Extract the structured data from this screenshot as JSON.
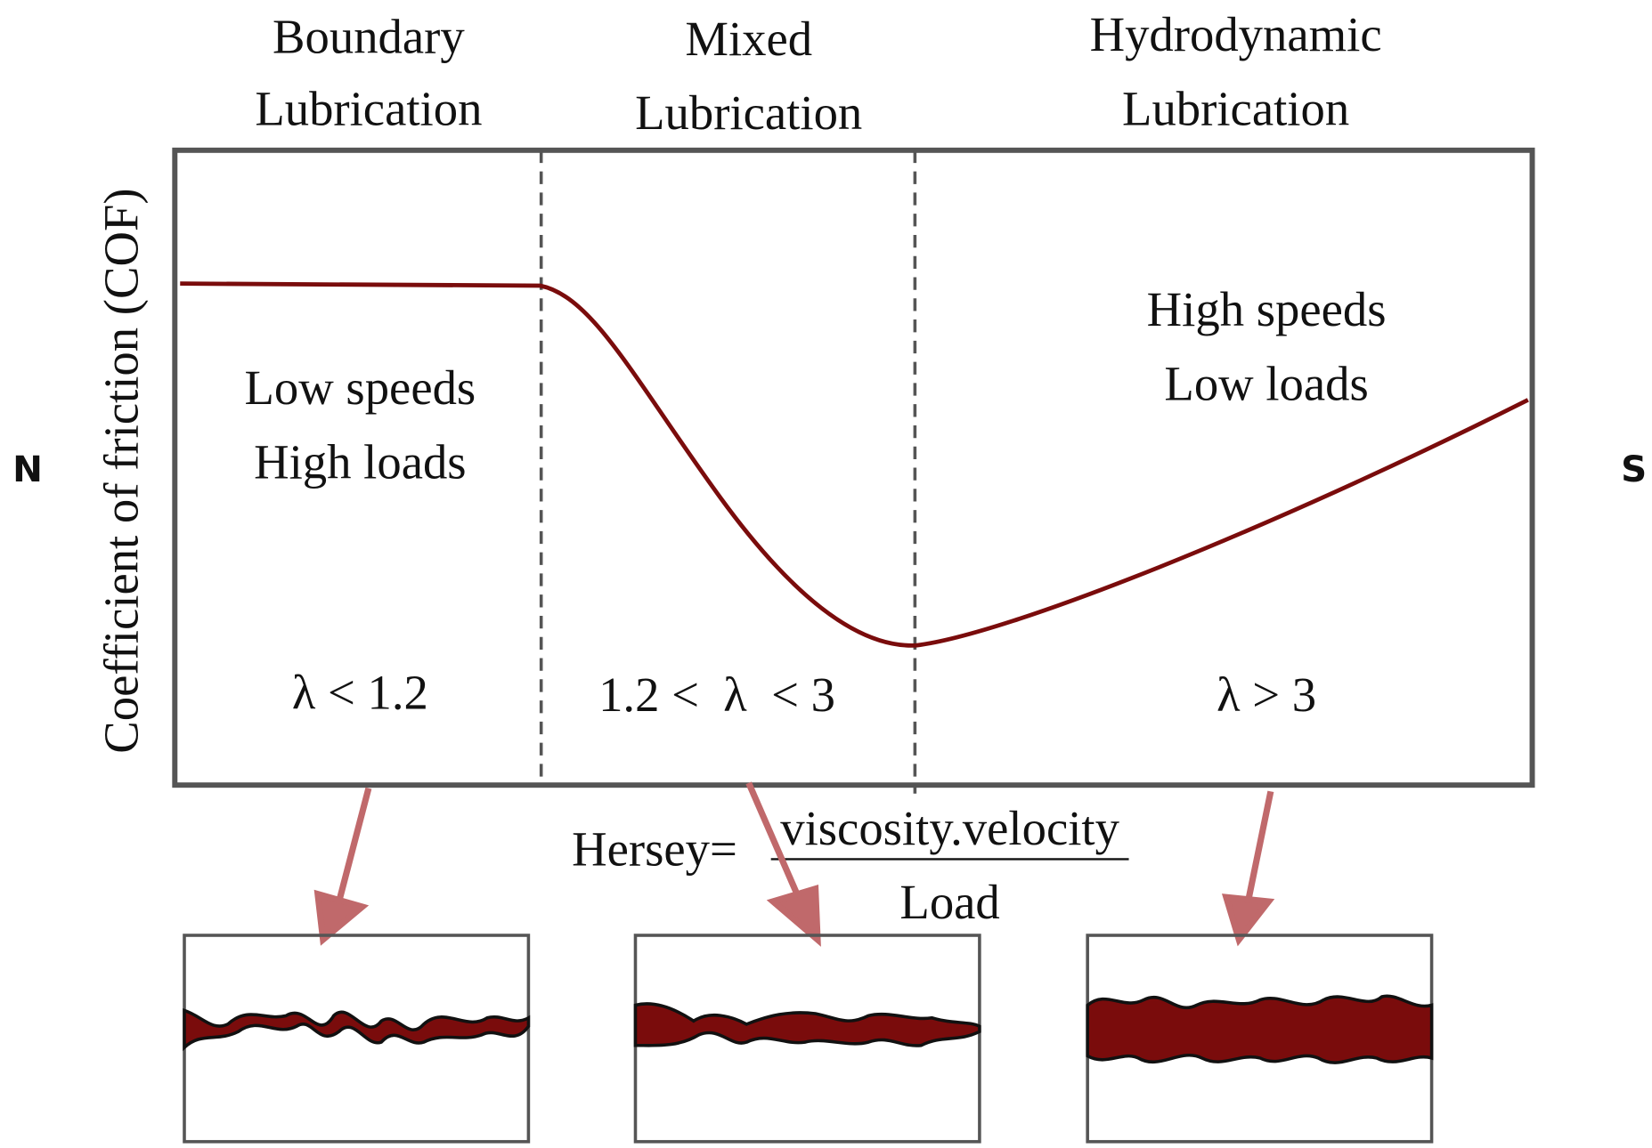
{
  "y_axis_label": "Coefficient of friction (COF)",
  "left_marker": "N",
  "right_marker": "S",
  "regimes": [
    {
      "title_lines": [
        "Boundary",
        "Lubrication"
      ],
      "conditions": [
        "Low speeds",
        "High loads"
      ],
      "film_ratio": "λ < 1.2"
    },
    {
      "title_lines": [
        "Mixed",
        "Lubrication"
      ],
      "film_ratio": "1.2 <  λ  < 3"
    },
    {
      "title_lines": [
        "Hydrodynamic",
        "Lubrication"
      ],
      "conditions": [
        "High speeds",
        "Low loads"
      ],
      "film_ratio": "λ > 3"
    }
  ],
  "formula": {
    "label": "Hersey=",
    "numerator": "viscosity.velocity",
    "denominator": "Load"
  }
}
